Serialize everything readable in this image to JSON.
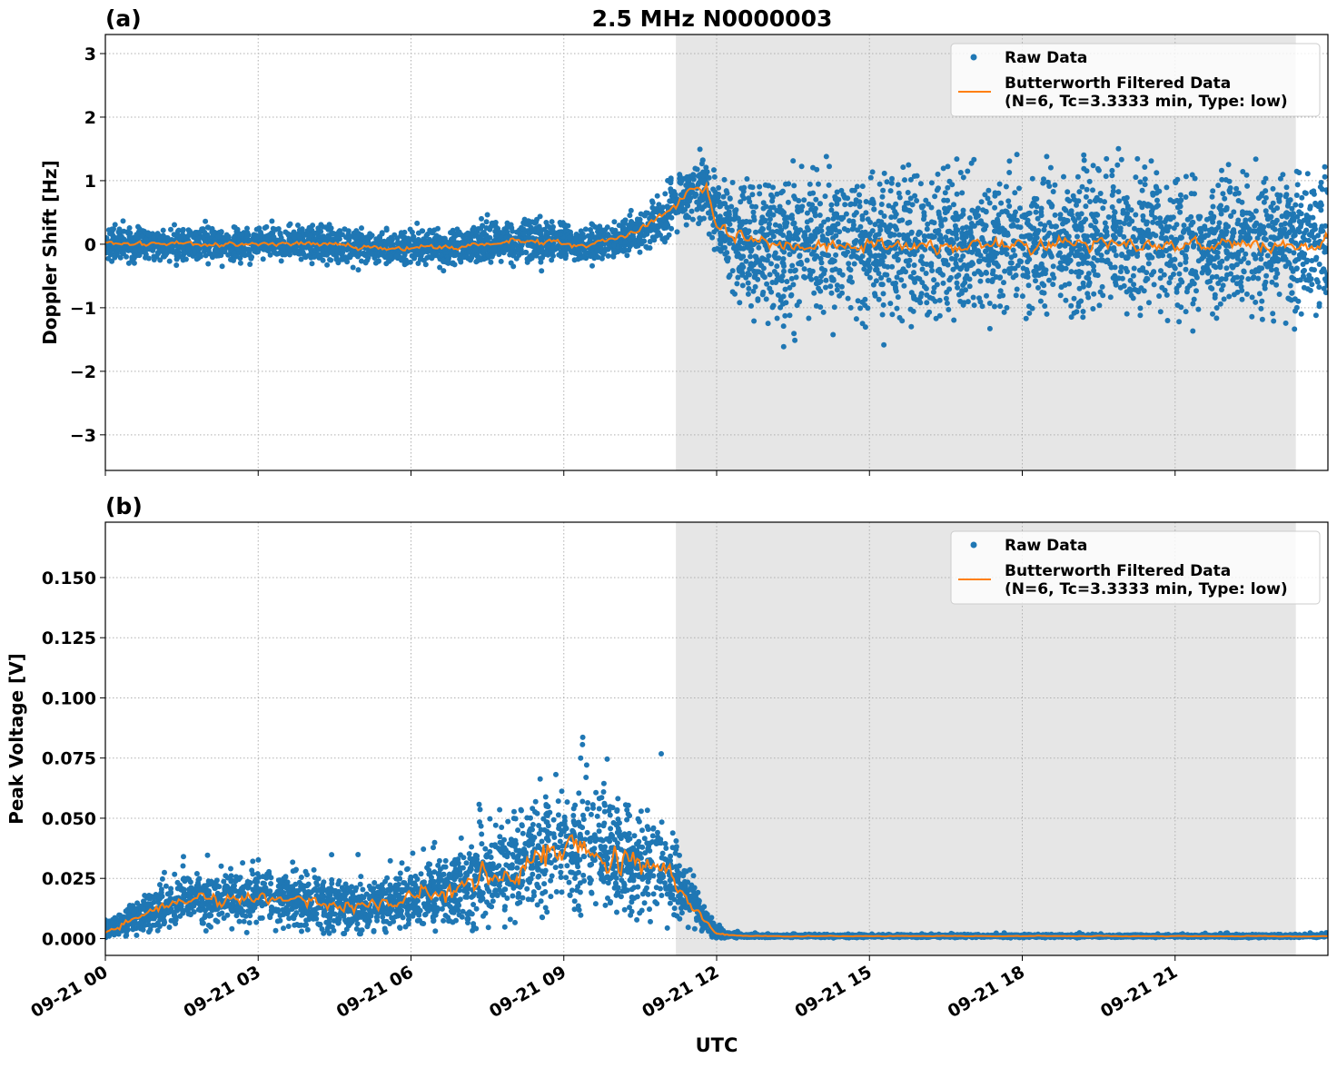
{
  "chart_data": {
    "title": "2.5 MHz N0000003",
    "xlabel": "UTC",
    "x_ticks": [
      "09-21 00",
      "09-21 03",
      "09-21 06",
      "09-21 09",
      "09-21 12",
      "09-21 15",
      "09-21 18",
      "09-21 21"
    ],
    "x_tick_hours": [
      0,
      3,
      6,
      9,
      12,
      15,
      18,
      21
    ],
    "xlim_hours": [
      0,
      24
    ],
    "shaded_region_hours": [
      11.2,
      23.37
    ],
    "legend": {
      "raw": "Raw Data",
      "filtered_line1": "Butterworth Filtered Data",
      "filtered_line2": "(N=6, Tc=3.3333 min, Type: low)",
      "placement": "upper right"
    },
    "colors": {
      "raw": "#1f77b4",
      "filtered": "#ff7f0e",
      "shade": "#e6e6e6"
    },
    "panels": [
      {
        "label": "(a)",
        "type": "scatter+line",
        "ylabel": "Doppler Shift [Hz]",
        "ylim": [
          -3.56,
          3.3
        ],
        "y_ticks": [
          3,
          2,
          1,
          0,
          -1,
          -2,
          -3
        ],
        "y_tick_labels": [
          "3",
          "2",
          "1",
          "0",
          "−1",
          "−2",
          "−3"
        ],
        "filtered": {
          "hours": [
            0,
            1,
            2,
            3,
            4,
            5,
            5.5,
            6,
            7,
            7.5,
            8,
            9,
            9.5,
            10,
            10.5,
            11,
            11.5,
            11.8,
            12,
            12.3,
            12.6,
            13,
            24
          ],
          "values": [
            0.02,
            0.0,
            0.01,
            0.01,
            0.0,
            -0.05,
            -0.08,
            -0.03,
            -0.05,
            0.0,
            0.05,
            0.03,
            0.0,
            0.1,
            0.2,
            0.5,
            0.85,
            0.9,
            0.4,
            0.1,
            0.05,
            0.0,
            0.0
          ]
        },
        "raw_spread": {
          "hours": [
            0,
            7,
            8,
            10,
            11,
            11.5,
            12,
            12.5,
            24
          ],
          "values": [
            0.22,
            0.25,
            0.3,
            0.25,
            0.35,
            0.4,
            0.5,
            1.0,
            1.0
          ]
        }
      },
      {
        "label": "(b)",
        "type": "scatter+line",
        "ylabel": "Peak Voltage [V]",
        "ylim": [
          -0.007,
          0.173
        ],
        "y_ticks": [
          0,
          0.025,
          0.05,
          0.075,
          0.1,
          0.125,
          0.15
        ],
        "y_tick_labels": [
          "0.000",
          "0.025",
          "0.050",
          "0.075",
          "0.100",
          "0.125",
          "0.150"
        ],
        "filtered": {
          "hours": [
            0,
            0.5,
            1,
            1.5,
            2,
            3,
            4,
            5,
            6,
            7,
            7.5,
            8,
            8.5,
            9,
            9.5,
            10,
            10.5,
            11,
            11.5,
            12,
            12.5,
            24
          ],
          "values": [
            0.003,
            0.008,
            0.012,
            0.016,
            0.015,
            0.017,
            0.015,
            0.013,
            0.017,
            0.02,
            0.025,
            0.03,
            0.036,
            0.038,
            0.035,
            0.033,
            0.032,
            0.03,
            0.015,
            0.002,
            0.001,
            0.001
          ]
        },
        "raw_spread": {
          "hours": [
            0,
            1,
            3,
            6,
            7.5,
            8.5,
            9.5,
            11,
            11.5,
            12,
            12.5,
            24
          ],
          "values": [
            0.003,
            0.008,
            0.01,
            0.01,
            0.016,
            0.022,
            0.02,
            0.018,
            0.008,
            0.002,
            0.0005,
            0.0005
          ]
        }
      }
    ]
  }
}
